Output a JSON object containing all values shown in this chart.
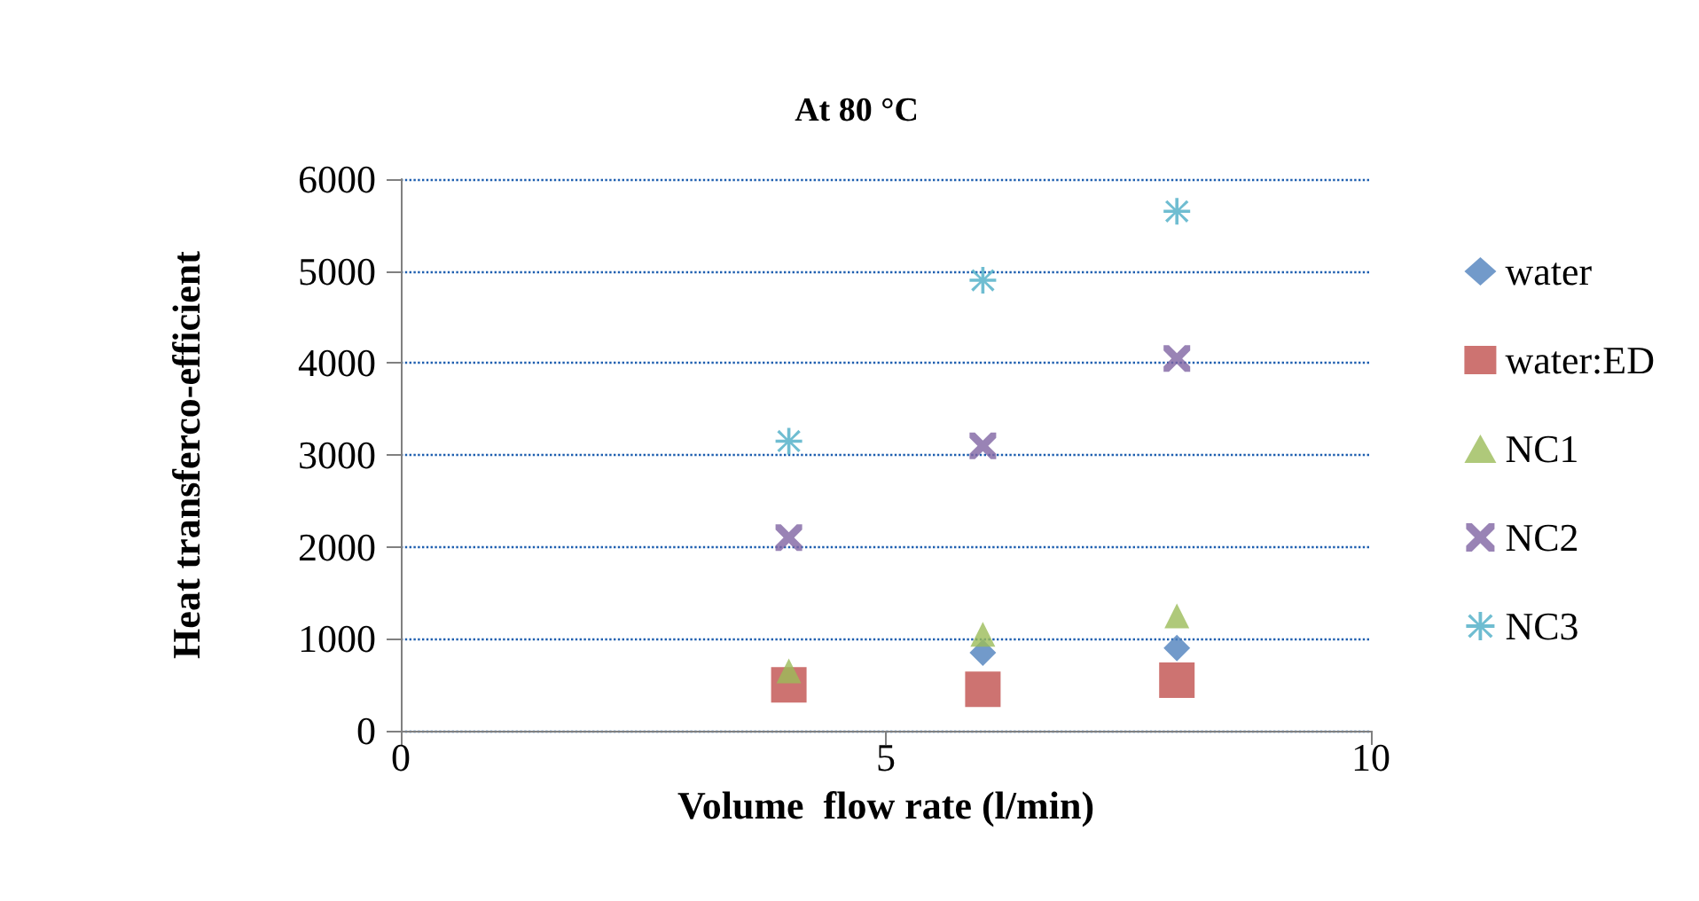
{
  "chart_data": {
    "type": "scatter",
    "title": "At 80 °C",
    "xlabel": "Volume  flow rate (l/min)",
    "ylabel": "Heat transferco-efficient",
    "x": [
      4,
      6,
      8
    ],
    "series": [
      {
        "name": "water",
        "color": "#4f81bd",
        "marker": "diamond",
        "values": [
          null,
          850,
          900
        ]
      },
      {
        "name": "water:ED",
        "color": "#c0504d",
        "marker": "square",
        "values": [
          500,
          450,
          550
        ]
      },
      {
        "name": "NC1",
        "color": "#9bbb59",
        "marker": "triangle",
        "values": [
          650,
          1050,
          1250
        ]
      },
      {
        "name": "NC2",
        "color": "#8064a2",
        "marker": "cross",
        "values": [
          2100,
          3100,
          4050
        ]
      },
      {
        "name": "NC3",
        "color": "#4bacc6",
        "marker": "star",
        "values": [
          3150,
          4900,
          5650
        ]
      }
    ],
    "xlim": [
      0,
      10
    ],
    "xticks": [
      0,
      5,
      10
    ],
    "ylim": [
      0,
      6000
    ],
    "yticks": [
      0,
      1000,
      2000,
      3000,
      4000,
      5000,
      6000
    ],
    "grid": "y",
    "legend": "right"
  }
}
